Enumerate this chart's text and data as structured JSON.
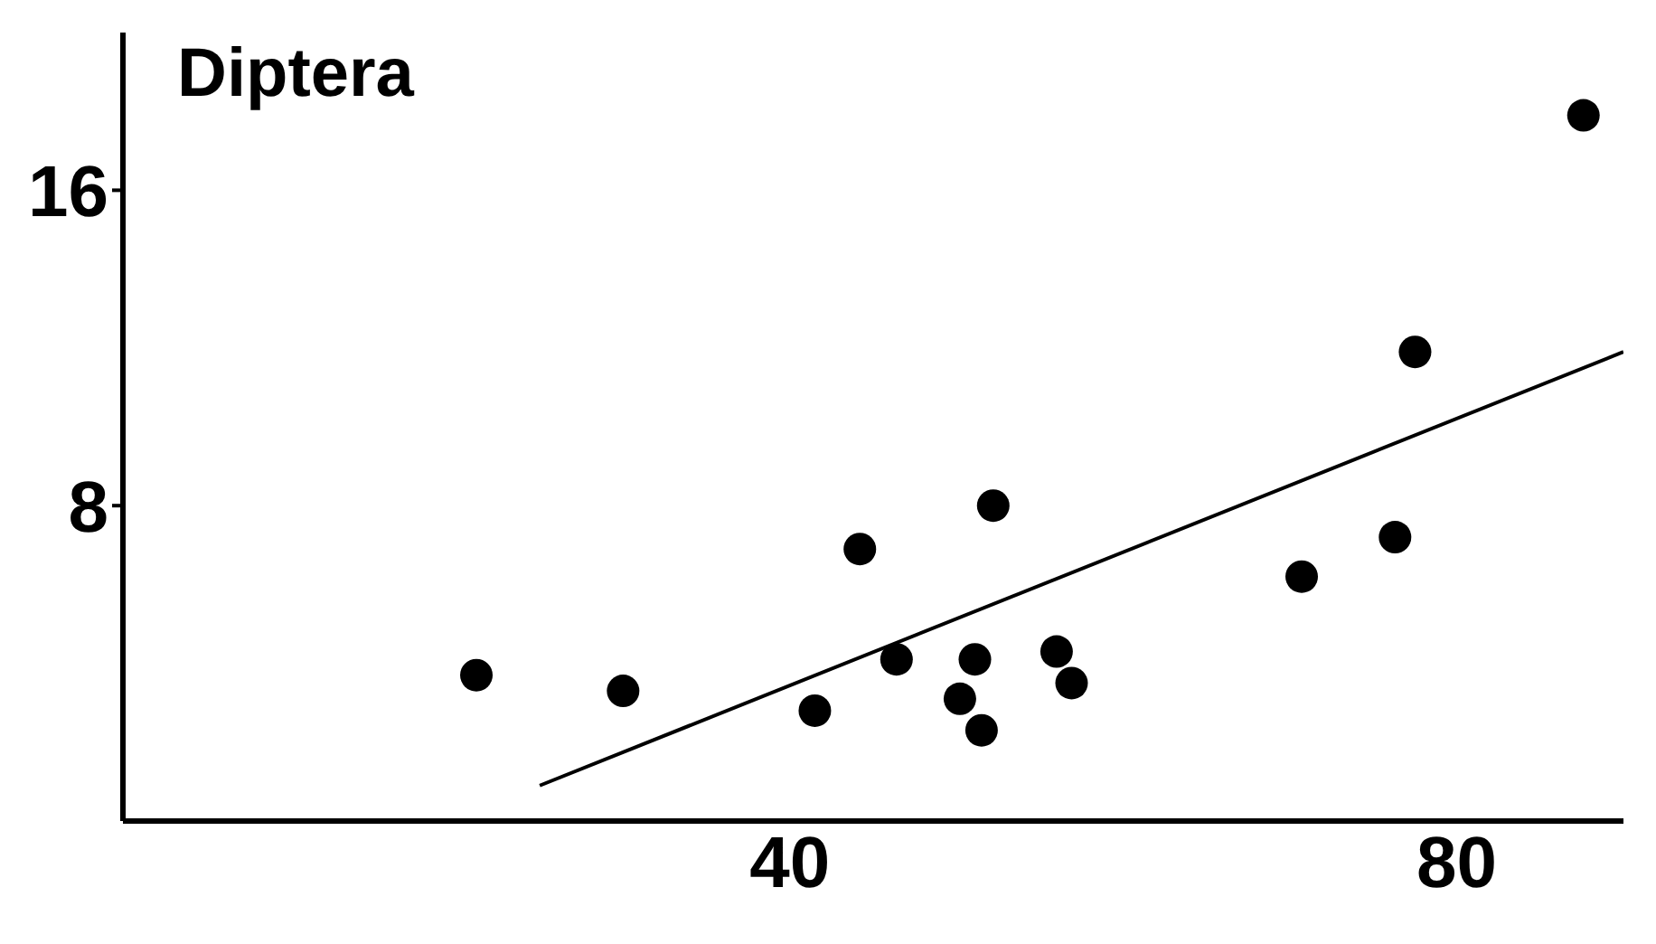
{
  "chart_data": {
    "type": "scatter",
    "title": "Diptera",
    "xlim": [
      0,
      90
    ],
    "ylim": [
      0,
      20
    ],
    "xticks": [
      40,
      80
    ],
    "yticks": [
      8,
      16
    ],
    "series": [
      {
        "marker": "circle",
        "color": "#000000",
        "x": [
          21.2,
          30.0,
          41.5,
          44.2,
          46.4,
          50.2,
          51.1,
          51.5,
          52.2,
          56.0,
          56.9,
          70.7,
          76.3,
          77.5,
          87.6
        ],
        "values": [
          3.7,
          3.3,
          2.8,
          6.9,
          4.1,
          3.1,
          4.1,
          2.3,
          8.0,
          4.3,
          3.5,
          6.2,
          7.2,
          11.9,
          17.9
        ]
      },
      {
        "type": "line",
        "marker": "none",
        "color": "#000000",
        "line_style": "solid",
        "x": [
          25,
          90
        ],
        "values": [
          0.9,
          11.9
        ]
      }
    ]
  }
}
